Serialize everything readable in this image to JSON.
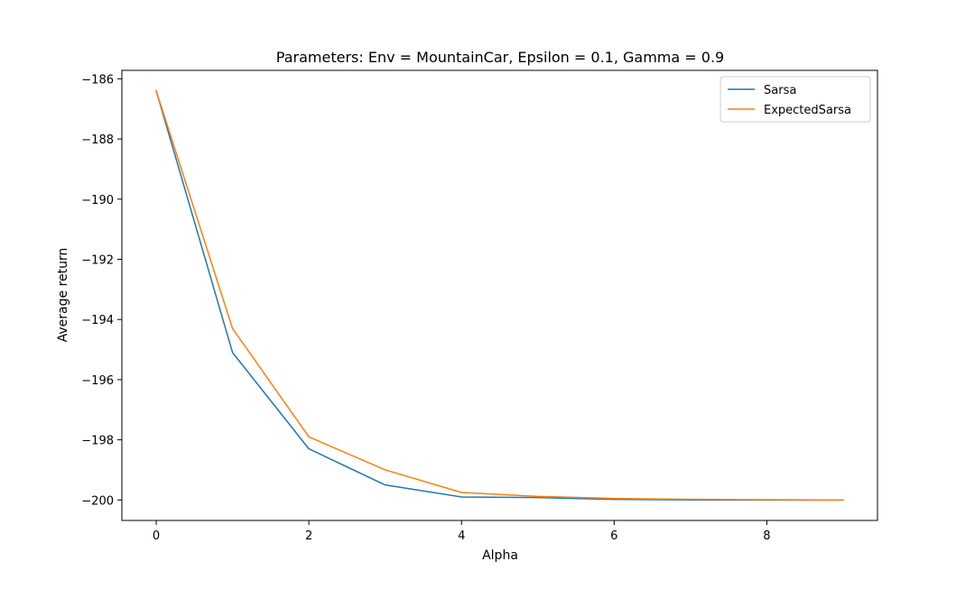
{
  "chart_data": {
    "type": "line",
    "title": "Parameters: Env = MountainCar, Epsilon = 0.1, Gamma = 0.9",
    "xlabel": "Alpha",
    "ylabel": "Average return",
    "x": [
      0,
      1,
      2,
      3,
      4,
      5,
      6,
      7,
      8,
      9
    ],
    "xlim": [
      -0.45,
      9.45
    ],
    "ylim": [
      -200.68,
      -185.72
    ],
    "xticks": [
      0,
      2,
      4,
      6,
      8
    ],
    "xtick_labels": [
      "0",
      "2",
      "4",
      "6",
      "8"
    ],
    "yticks": [
      -186,
      -188,
      -190,
      -192,
      -194,
      -196,
      -198,
      -200
    ],
    "ytick_labels": [
      "−186",
      "−188",
      "−190",
      "−192",
      "−194",
      "−196",
      "−198",
      "−200"
    ],
    "grid": false,
    "legend_position": "top-right",
    "series": [
      {
        "name": "Sarsa",
        "color": "#1f77b4",
        "values": [
          -186.4,
          -195.1,
          -198.3,
          -199.5,
          -199.9,
          -199.92,
          -199.98,
          -200.0,
          -200.0,
          -200.0
        ]
      },
      {
        "name": "ExpectedSarsa",
        "color": "#ff7f0e",
        "values": [
          -186.4,
          -194.3,
          -197.9,
          -199.0,
          -199.75,
          -199.88,
          -199.95,
          -199.98,
          -199.99,
          -200.0
        ]
      }
    ]
  }
}
